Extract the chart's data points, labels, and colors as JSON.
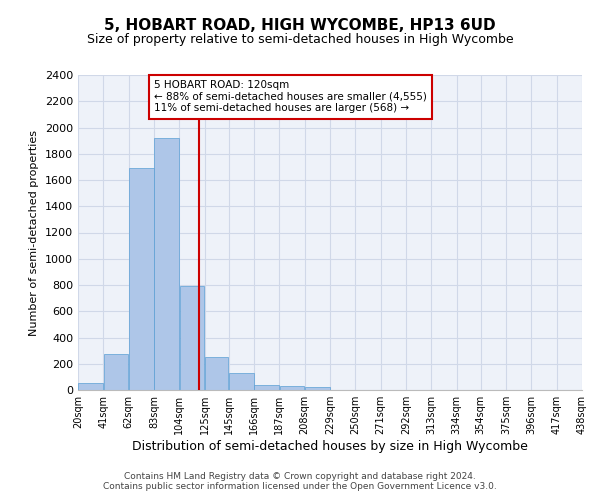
{
  "title": "5, HOBART ROAD, HIGH WYCOMBE, HP13 6UD",
  "subtitle": "Size of property relative to semi-detached houses in High Wycombe",
  "xlabel": "Distribution of semi-detached houses by size in High Wycombe",
  "ylabel": "Number of semi-detached properties",
  "footnote1": "Contains HM Land Registry data © Crown copyright and database right 2024.",
  "footnote2": "Contains public sector information licensed under the Open Government Licence v3.0.",
  "bar_left_edges": [
    20,
    41,
    62,
    83,
    104,
    125,
    145,
    166,
    187,
    208,
    229,
    250,
    271,
    292,
    313,
    334,
    354,
    375,
    396,
    417
  ],
  "bar_widths": [
    21,
    21,
    21,
    21,
    21,
    20,
    21,
    21,
    21,
    21,
    21,
    21,
    21,
    21,
    21,
    20,
    21,
    21,
    21,
    21
  ],
  "bar_heights": [
    55,
    275,
    1690,
    1920,
    790,
    255,
    130,
    35,
    28,
    20,
    0,
    0,
    0,
    0,
    0,
    0,
    0,
    0,
    0,
    0
  ],
  "bar_color": "#aec6e8",
  "bar_edgecolor": "#5a9fd4",
  "grid_color": "#d0d8e8",
  "bg_color": "#eef2f9",
  "vline_x": 120,
  "vline_color": "#cc0000",
  "property_label": "5 HOBART ROAD: 120sqm",
  "annotation_line1": "← 88% of semi-detached houses are smaller (4,555)",
  "annotation_line2": "11% of semi-detached houses are larger (568) →",
  "annotation_box_color": "#cc0000",
  "annotation_box_fill": "#ffffff",
  "xlim": [
    20,
    438
  ],
  "ylim": [
    0,
    2400
  ],
  "yticks": [
    0,
    200,
    400,
    600,
    800,
    1000,
    1200,
    1400,
    1600,
    1800,
    2000,
    2200,
    2400
  ],
  "xtick_labels": [
    "20sqm",
    "41sqm",
    "62sqm",
    "83sqm",
    "104sqm",
    "125sqm",
    "145sqm",
    "166sqm",
    "187sqm",
    "208sqm",
    "229sqm",
    "250sqm",
    "271sqm",
    "292sqm",
    "313sqm",
    "334sqm",
    "354sqm",
    "375sqm",
    "396sqm",
    "417sqm",
    "438sqm"
  ],
  "xtick_positions": [
    20,
    41,
    62,
    83,
    104,
    125,
    145,
    166,
    187,
    208,
    229,
    250,
    271,
    292,
    313,
    334,
    354,
    375,
    396,
    417,
    438
  ]
}
